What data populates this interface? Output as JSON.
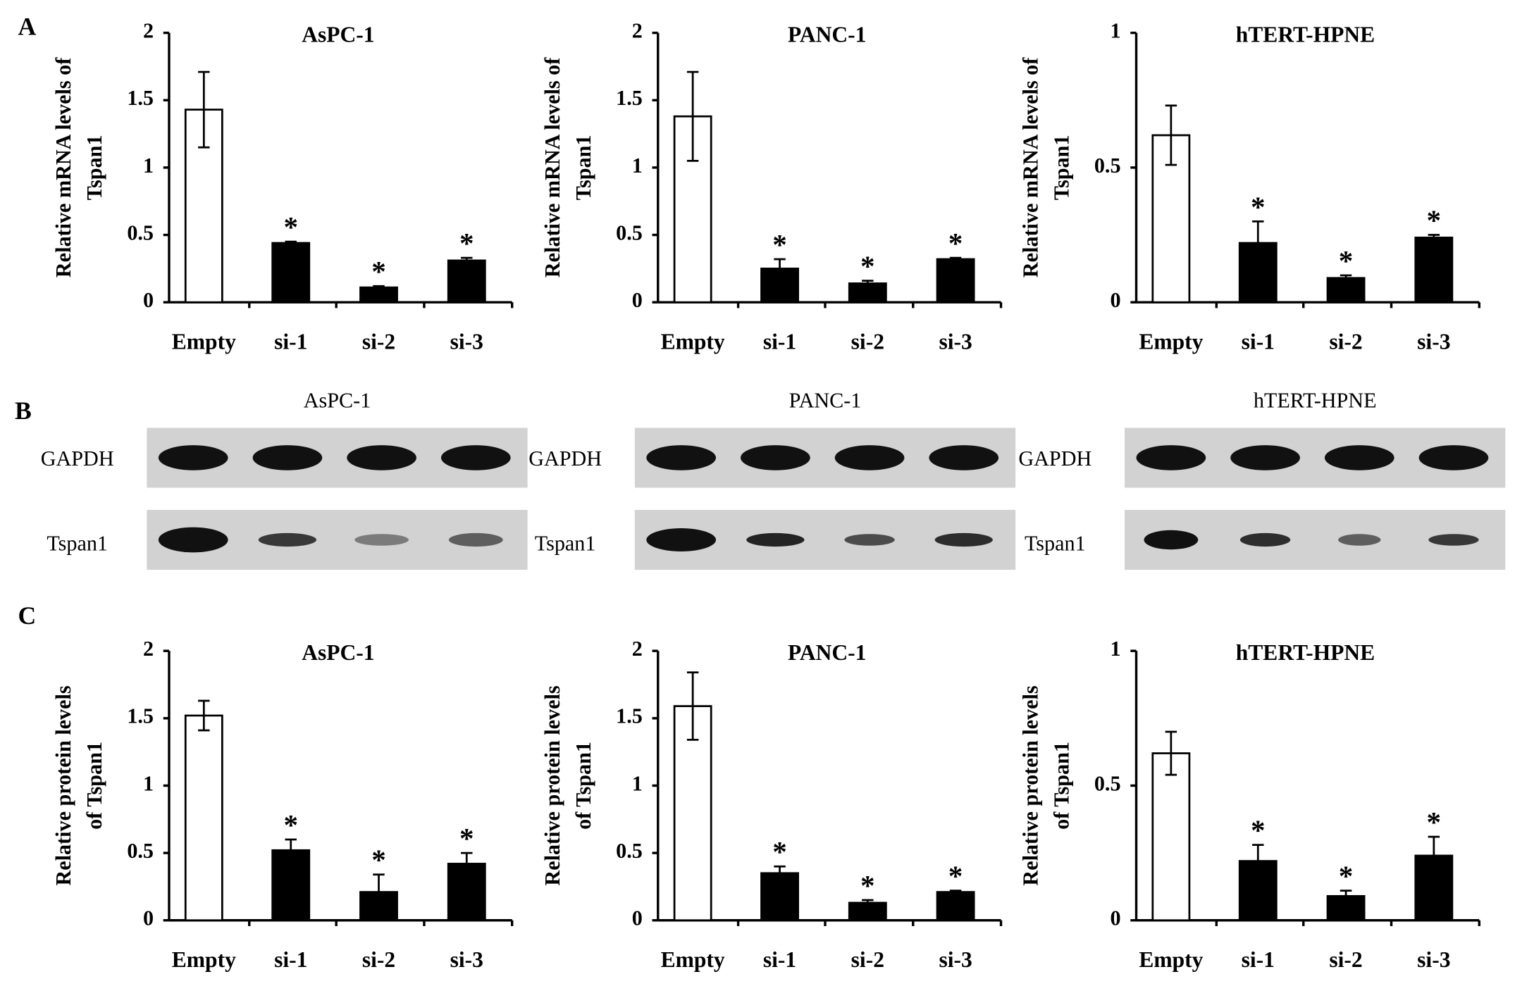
{
  "panels": [
    "A",
    "B",
    "C"
  ],
  "blots": [
    {
      "title": "AsPC-1",
      "rows": [
        "GAPDH",
        "Tspan1"
      ]
    },
    {
      "title": "PANC-1",
      "rows": [
        "GAPDH",
        "Tspan1"
      ]
    },
    {
      "title": "hTERT-HPNE",
      "rows": [
        "GAPDH",
        "Tspan1"
      ]
    }
  ],
  "chart_data": [
    {
      "type": "bar",
      "title": "AsPC-1",
      "ylabel": [
        "Relative mRNA levels of",
        "Tspan1"
      ],
      "categories": [
        "Empty",
        "si-1",
        "si-2",
        "si-3"
      ],
      "values": [
        1.43,
        0.44,
        0.11,
        0.31
      ],
      "errors": [
        0.28,
        0.01,
        0.01,
        0.02
      ],
      "annotations": [
        null,
        "*",
        "*",
        "*"
      ],
      "colors": [
        "#ffffff",
        "#000000",
        "#000000",
        "#000000"
      ],
      "ylim": [
        0,
        2
      ],
      "yticks": [
        0,
        0.5,
        1,
        1.5,
        2
      ]
    },
    {
      "type": "bar",
      "title": "PANC-1",
      "ylabel": [
        "Relative mRNA levels of",
        "Tspan1"
      ],
      "categories": [
        "Empty",
        "si-1",
        "si-2",
        "si-3"
      ],
      "values": [
        1.38,
        0.25,
        0.14,
        0.32
      ],
      "errors": [
        0.33,
        0.07,
        0.02,
        0.01
      ],
      "annotations": [
        null,
        "*",
        "*",
        "*"
      ],
      "colors": [
        "#ffffff",
        "#000000",
        "#000000",
        "#000000"
      ],
      "ylim": [
        0,
        2
      ],
      "yticks": [
        0,
        0.5,
        1,
        1.5,
        2
      ]
    },
    {
      "type": "bar",
      "title": "hTERT-HPNE",
      "ylabel": [
        "Relative mRNA levels of",
        "Tspan1"
      ],
      "categories": [
        "Empty",
        "si-1",
        "si-2",
        "si-3"
      ],
      "values": [
        0.62,
        0.22,
        0.09,
        0.24
      ],
      "errors": [
        0.11,
        0.08,
        0.01,
        0.01
      ],
      "annotations": [
        null,
        "*",
        "*",
        "*"
      ],
      "colors": [
        "#ffffff",
        "#000000",
        "#000000",
        "#000000"
      ],
      "ylim": [
        0,
        1
      ],
      "yticks": [
        0,
        0.5,
        1
      ]
    },
    {
      "type": "bar",
      "title": "AsPC-1",
      "ylabel": [
        "Relative protein levels",
        "of Tspan1"
      ],
      "categories": [
        "Empty",
        "si-1",
        "si-2",
        "si-3"
      ],
      "values": [
        1.52,
        0.52,
        0.21,
        0.42
      ],
      "errors": [
        0.11,
        0.08,
        0.13,
        0.08
      ],
      "annotations": [
        null,
        "*",
        "*",
        "*"
      ],
      "colors": [
        "#ffffff",
        "#000000",
        "#000000",
        "#000000"
      ],
      "ylim": [
        0,
        2
      ],
      "yticks": [
        0,
        0.5,
        1,
        1.5,
        2
      ]
    },
    {
      "type": "bar",
      "title": "PANC-1",
      "ylabel": [
        "Relative protein levels",
        "of Tspan1"
      ],
      "categories": [
        "Empty",
        "si-1",
        "si-2",
        "si-3"
      ],
      "values": [
        1.59,
        0.35,
        0.13,
        0.21
      ],
      "errors": [
        0.25,
        0.05,
        0.02,
        0.01
      ],
      "annotations": [
        null,
        "*",
        "*",
        "*"
      ],
      "colors": [
        "#ffffff",
        "#000000",
        "#000000",
        "#000000"
      ],
      "ylim": [
        0,
        2
      ],
      "yticks": [
        0,
        0.5,
        1,
        1.5,
        2
      ]
    },
    {
      "type": "bar",
      "title": "hTERT-HPNE",
      "ylabel": [
        "Relative protein levels",
        "of Tspan1"
      ],
      "categories": [
        "Empty",
        "si-1",
        "si-2",
        "si-3"
      ],
      "values": [
        0.62,
        0.22,
        0.09,
        0.24
      ],
      "errors": [
        0.08,
        0.06,
        0.02,
        0.07
      ],
      "annotations": [
        null,
        "*",
        "*",
        "*"
      ],
      "colors": [
        "#ffffff",
        "#000000",
        "#000000",
        "#000000"
      ],
      "ylim": [
        0,
        1
      ],
      "yticks": [
        0,
        0.5,
        1
      ]
    }
  ]
}
